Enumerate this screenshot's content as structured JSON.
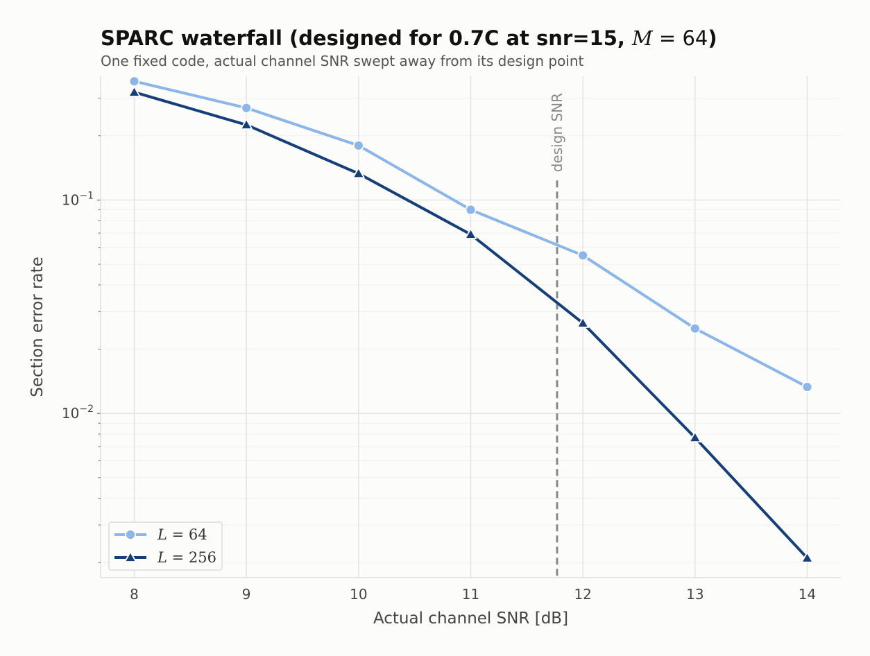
{
  "title": {
    "bold_prefix": "SPARC waterfall  (designed for 0.7C at snr=15, ",
    "math_var": "M",
    "math_eq": " = 64",
    "bold_suffix": ")"
  },
  "subtitle": "One fixed code, actual channel SNR swept away from its design point",
  "colors": {
    "background": "#fcfcfb",
    "series_l64": "#8ab6ea",
    "series_l256": "#143f7a",
    "design_line": "#888888",
    "grid_major": "#e2e2e2",
    "grid_minor": "#efefef"
  },
  "chart_data": {
    "type": "line",
    "xlabel": "Actual channel SNR [dB]",
    "ylabel": "Section error rate",
    "xlim": [
      7.7,
      14.3
    ],
    "ylim": [
      0.0017,
      0.38
    ],
    "yscale": "log",
    "xticks": [
      8,
      9,
      10,
      11,
      12,
      13,
      14
    ],
    "yticks": [
      {
        "value": 0.1,
        "base": "10",
        "exp": "−1"
      },
      {
        "value": 0.01,
        "base": "10",
        "exp": "−2"
      }
    ],
    "grid": true,
    "legend_position": "lower-left",
    "x": [
      8,
      9,
      10,
      11,
      12,
      13,
      14
    ],
    "series": [
      {
        "name_var": "L",
        "name_eq": " = 64",
        "marker": "circle",
        "values": [
          0.36,
          0.27,
          0.18,
          0.09,
          0.055,
          0.025,
          0.0133
        ]
      },
      {
        "name_var": "L",
        "name_eq": " = 256",
        "marker": "triangle",
        "values": [
          0.32,
          0.225,
          0.133,
          0.069,
          0.0265,
          0.0077,
          0.0021
        ]
      }
    ],
    "annotation": {
      "x": 11.77,
      "label": "design SNR",
      "style": "dashed"
    }
  }
}
